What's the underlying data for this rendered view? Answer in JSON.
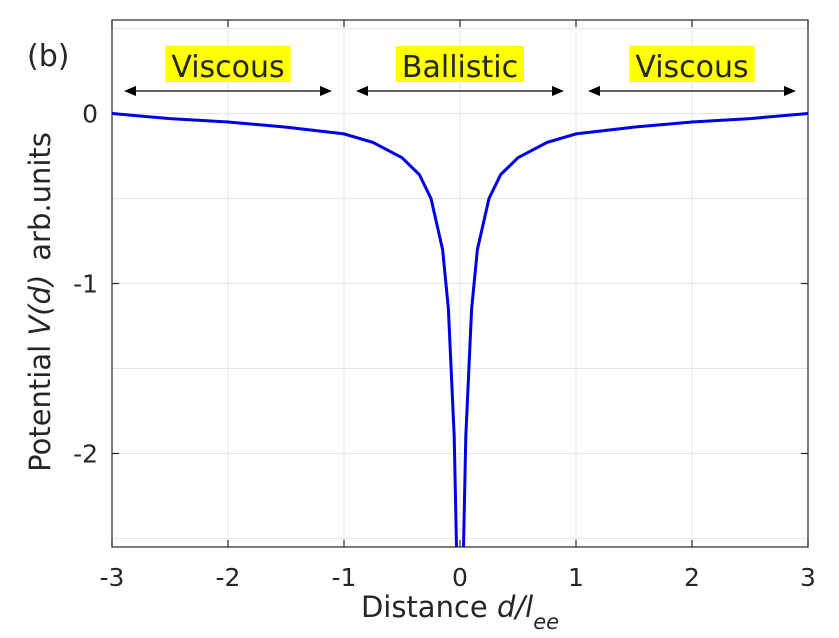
{
  "panel_label": "(b)",
  "colors": {
    "series": "#0000e6",
    "region_highlight": "#ffff00",
    "axis": "#262626",
    "grid": "#e6e6e6"
  },
  "chart_data": {
    "type": "line",
    "title": "",
    "xlabel": {
      "text": "Distance ",
      "var": "d/l",
      "sub": "ee"
    },
    "ylabel": {
      "text": "Potential ",
      "var": "V(d)",
      "units": "arb.units"
    },
    "xlim": [
      -3,
      3
    ],
    "ylim": [
      -2.55,
      0.55
    ],
    "xticks": [
      -3,
      -2,
      -1,
      0,
      1,
      2,
      3
    ],
    "xtick_labels": [
      "-3",
      "-2",
      "-1",
      "0",
      "1",
      "2",
      "3"
    ],
    "yticks": [
      0,
      -1,
      -2
    ],
    "ytick_labels": [
      "0",
      "-1",
      "-2"
    ],
    "grid": true,
    "series": [
      {
        "color": "#0000e6",
        "x": [
          -3.0,
          -2.5,
          -2.0,
          -1.5,
          -1.0,
          -0.75,
          -0.5,
          -0.35,
          -0.25,
          -0.15,
          -0.1,
          -0.05,
          -0.03,
          0.03,
          0.05,
          0.1,
          0.15,
          0.25,
          0.35,
          0.5,
          0.75,
          1.0,
          1.5,
          2.0,
          2.5,
          3.0
        ],
        "y": [
          0.0,
          -0.03,
          -0.05,
          -0.08,
          -0.12,
          -0.17,
          -0.26,
          -0.36,
          -0.5,
          -0.8,
          -1.15,
          -1.9,
          -2.55,
          -2.55,
          -1.9,
          -1.15,
          -0.8,
          -0.5,
          -0.36,
          -0.26,
          -0.17,
          -0.12,
          -0.08,
          -0.05,
          -0.03,
          0.0
        ]
      }
    ],
    "regions": [
      {
        "label": "Viscous",
        "x_range": [
          -3,
          -1
        ]
      },
      {
        "label": "Ballistic",
        "x_range": [
          -1,
          1
        ]
      },
      {
        "label": "Viscous",
        "x_range": [
          1,
          3
        ]
      }
    ]
  }
}
